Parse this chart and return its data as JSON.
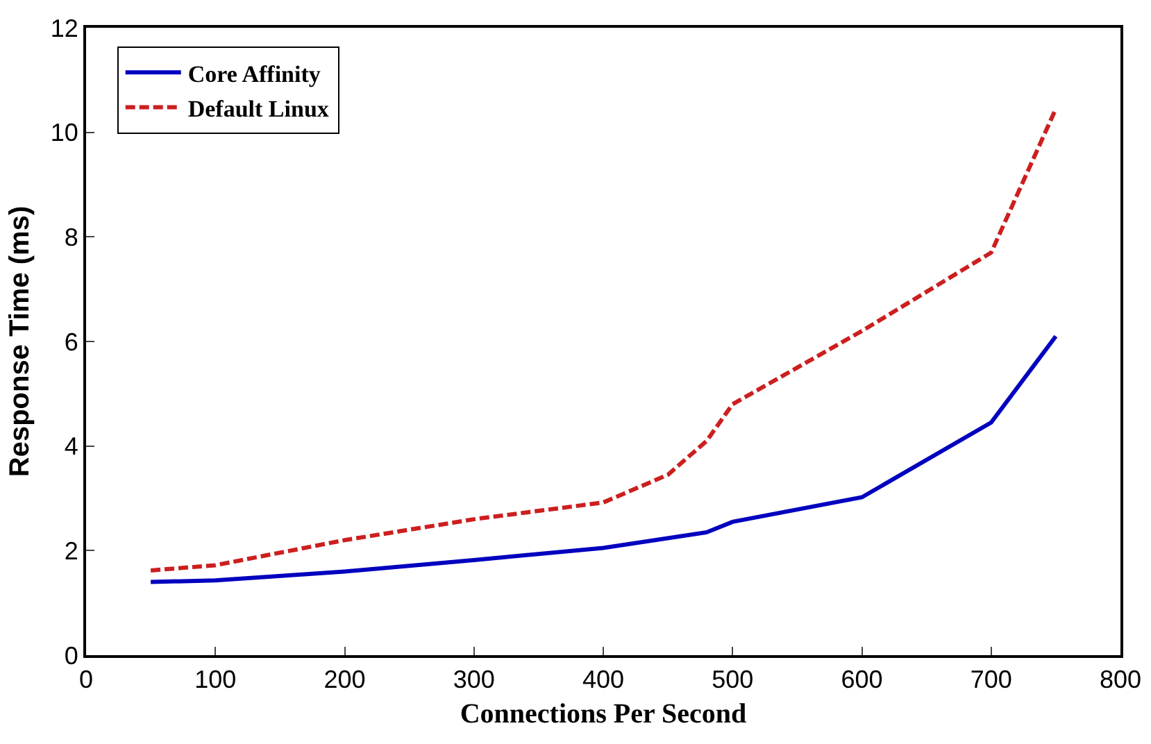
{
  "chart_data": {
    "type": "line",
    "xlabel": "Connections Per Second",
    "ylabel": "Response Time (ms)",
    "xlim": [
      0,
      800
    ],
    "xticks": [
      0,
      100,
      200,
      300,
      400,
      500,
      600,
      700,
      800
    ],
    "ylim": [
      0,
      12
    ],
    "yticks": [
      0,
      2,
      4,
      6,
      8,
      10,
      12
    ],
    "grid": false,
    "legend": "top left",
    "marker": "none",
    "series": [
      {
        "name": "Core Affinity",
        "color": "#0000bf",
        "line_style": "solid",
        "x": [
          50,
          100,
          200,
          300,
          400,
          480,
          500,
          600,
          700,
          750
        ],
        "values": [
          1.4,
          1.43,
          1.6,
          1.82,
          2.05,
          2.35,
          2.55,
          3.02,
          4.45,
          6.1
        ]
      },
      {
        "name": "Default Linux",
        "color": "#cc1f1f",
        "line_style": "dashed",
        "x": [
          50,
          100,
          200,
          300,
          400,
          450,
          480,
          500,
          600,
          700,
          750
        ],
        "values": [
          1.62,
          1.72,
          2.2,
          2.6,
          2.92,
          3.45,
          4.1,
          4.8,
          6.2,
          7.7,
          10.45
        ]
      }
    ]
  }
}
